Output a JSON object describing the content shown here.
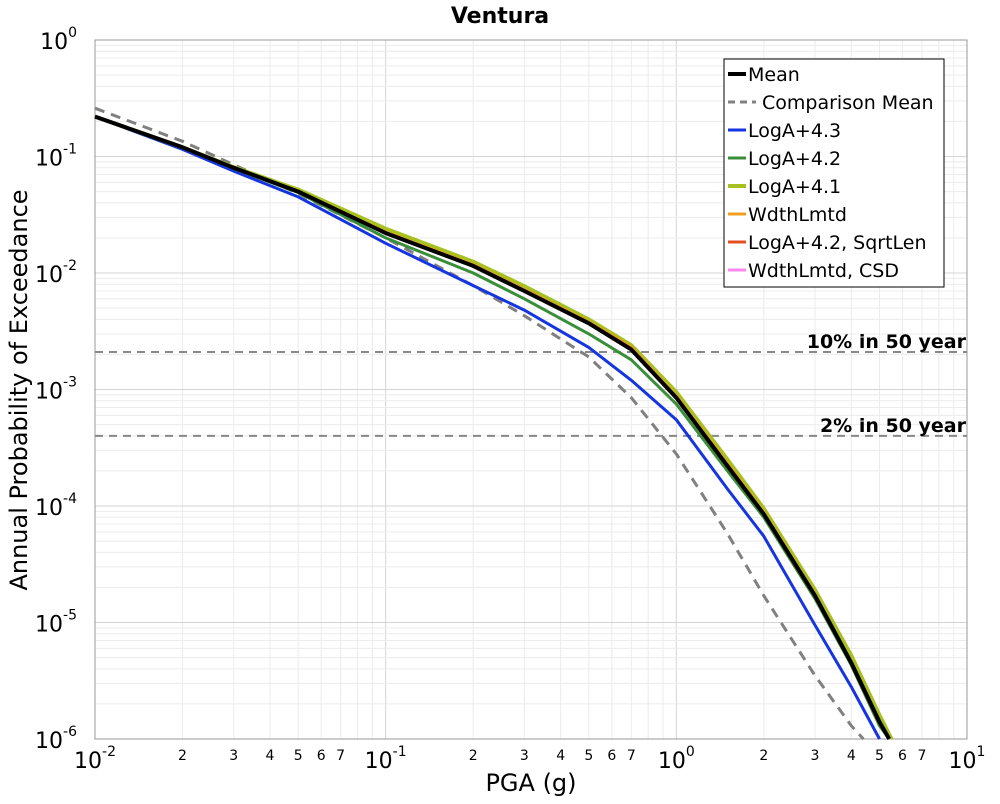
{
  "chart_data": {
    "type": "line",
    "title": "Ventura",
    "xlabel": "PGA (g)",
    "ylabel": "Annual Probability of Exceedance",
    "x_scale": "log",
    "y_scale": "log",
    "xlim": [
      0.01,
      10
    ],
    "ylim": [
      1e-06,
      1
    ],
    "grid": true,
    "legend_position": "top-right",
    "x_major_ticks": [
      {
        "value": 0.01,
        "base": "10",
        "exp": "-2"
      },
      {
        "value": 0.1,
        "base": "10",
        "exp": "-1"
      },
      {
        "value": 1,
        "base": "10",
        "exp": "0"
      },
      {
        "value": 10,
        "base": "10",
        "exp": "1"
      }
    ],
    "x_minor_labels": [
      "2",
      "3",
      "4",
      "5",
      "6",
      "7"
    ],
    "y_major_ticks": [
      {
        "value": 1,
        "base": "10",
        "exp": "0"
      },
      {
        "value": 0.1,
        "base": "10",
        "exp": "-1"
      },
      {
        "value": 0.01,
        "base": "10",
        "exp": "-2"
      },
      {
        "value": 0.001,
        "base": "10",
        "exp": "-3"
      },
      {
        "value": 0.0001,
        "base": "10",
        "exp": "-4"
      },
      {
        "value": 1e-05,
        "base": "10",
        "exp": "-5"
      },
      {
        "value": 1e-06,
        "base": "10",
        "exp": "-6"
      }
    ],
    "reference_lines": [
      {
        "label": "10% in 50 year",
        "y": 0.0021,
        "color": "#888888"
      },
      {
        "label": "2% in 50 year",
        "y": 0.0004,
        "color": "#888888"
      }
    ],
    "series": [
      {
        "name": "Mean",
        "color": "#000000",
        "width": 4,
        "dash": "",
        "x": [
          0.01,
          0.02,
          0.03,
          0.05,
          0.1,
          0.2,
          0.3,
          0.5,
          0.7,
          1.0,
          1.5,
          2.0,
          3.0,
          4.0,
          5.0,
          5.4
        ],
        "y": [
          0.22,
          0.12,
          0.08,
          0.05,
          0.022,
          0.0115,
          0.007,
          0.0037,
          0.0022,
          0.00085,
          0.00022,
          8.5e-05,
          1.7e-05,
          4.5e-06,
          1.4e-06,
          1e-06
        ]
      },
      {
        "name": "Comparison Mean",
        "color": "#808080",
        "width": 3,
        "dash": "10,7",
        "x": [
          0.01,
          0.02,
          0.03,
          0.05,
          0.1,
          0.2,
          0.3,
          0.5,
          0.7,
          1.0,
          1.5,
          2.0,
          3.0,
          4.0,
          4.4
        ],
        "y": [
          0.26,
          0.135,
          0.085,
          0.048,
          0.02,
          0.0078,
          0.0043,
          0.0019,
          0.00085,
          0.00028,
          5.8e-05,
          1.7e-05,
          3.5e-06,
          1.3e-06,
          1e-06
        ]
      },
      {
        "name": "LogA+4.3",
        "color": "#1535e0",
        "width": 3,
        "dash": "",
        "x": [
          0.01,
          0.02,
          0.03,
          0.05,
          0.1,
          0.2,
          0.3,
          0.5,
          0.7,
          1.0,
          1.5,
          2.0,
          3.0,
          4.0,
          5.0
        ],
        "y": [
          0.22,
          0.115,
          0.075,
          0.045,
          0.018,
          0.0078,
          0.0048,
          0.0023,
          0.0012,
          0.00055,
          0.00014,
          5.5e-05,
          9.5e-06,
          2.8e-06,
          1e-06
        ]
      },
      {
        "name": "LogA+4.2",
        "color": "#3a8e3a",
        "width": 3,
        "dash": "",
        "x": [
          0.01,
          0.02,
          0.03,
          0.05,
          0.1,
          0.2,
          0.3,
          0.5,
          0.7,
          1.0,
          1.5,
          2.0,
          3.0,
          4.0,
          5.0,
          5.4
        ],
        "y": [
          0.22,
          0.12,
          0.079,
          0.049,
          0.02,
          0.01,
          0.006,
          0.003,
          0.0018,
          0.00075,
          0.0002,
          8e-05,
          1.6e-05,
          4.3e-06,
          1.3e-06,
          1e-06
        ]
      },
      {
        "name": "LogA+4.1",
        "color": "#a8c020",
        "width": 4,
        "dash": "",
        "x": [
          0.01,
          0.02,
          0.03,
          0.05,
          0.1,
          0.2,
          0.3,
          0.5,
          0.7,
          1.0,
          1.5,
          2.0,
          3.0,
          4.0,
          5.0,
          5.5
        ],
        "y": [
          0.22,
          0.12,
          0.081,
          0.052,
          0.024,
          0.0125,
          0.0077,
          0.004,
          0.0024,
          0.00095,
          0.00025,
          9.5e-05,
          1.9e-05,
          5.2e-06,
          1.6e-06,
          1e-06
        ]
      },
      {
        "name": "WdthLmtd",
        "color": "#f0a020",
        "width": 3,
        "dash": "",
        "x": [
          0.01,
          0.02,
          0.03,
          0.05,
          0.1,
          0.2,
          0.3,
          0.5,
          0.7,
          1.0,
          1.5,
          2.0,
          3.0,
          4.0,
          5.0,
          5.4
        ],
        "y": [
          0.22,
          0.12,
          0.08,
          0.05,
          0.0225,
          0.0118,
          0.0072,
          0.0038,
          0.0023,
          0.00088,
          0.00023,
          8.8e-05,
          1.75e-05,
          4.6e-06,
          1.4e-06,
          1e-06
        ]
      },
      {
        "name": "LogA+4.2, SqrtLen",
        "color": "#e05020",
        "width": 3,
        "dash": "",
        "x": [
          0.01,
          0.02,
          0.03,
          0.05,
          0.1,
          0.2,
          0.3,
          0.5,
          0.7,
          1.0,
          1.5,
          2.0,
          3.0,
          4.0,
          5.0,
          5.4
        ],
        "y": [
          0.22,
          0.12,
          0.08,
          0.05,
          0.0222,
          0.0116,
          0.0071,
          0.00375,
          0.00225,
          0.00086,
          0.000225,
          8.6e-05,
          1.72e-05,
          4.5e-06,
          1.4e-06,
          1e-06
        ]
      },
      {
        "name": "WdthLmtd, CSD",
        "color": "#ff88ee",
        "width": 3,
        "dash": "",
        "x": [],
        "y": []
      }
    ]
  }
}
